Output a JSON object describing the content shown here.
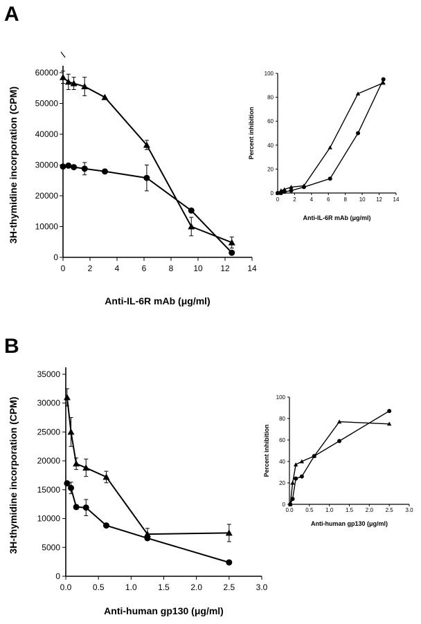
{
  "figure": {
    "panel_a": "A",
    "panel_b": "B"
  },
  "chart_data": [
    {
      "id": "A-main",
      "type": "line",
      "xlabel": "Anti-IL-6R mAb (μg/ml)",
      "ylabel": "3H-thymidine incorporation (CPM)",
      "xlim": [
        0,
        14
      ],
      "ylim": [
        0,
        60000
      ],
      "xticks": [
        0,
        2,
        4,
        6,
        8,
        10,
        12,
        14
      ],
      "yticks": [
        0,
        10000,
        20000,
        30000,
        40000,
        50000,
        60000
      ],
      "xtick_labels": [
        "0",
        "2",
        "4",
        "6",
        "8",
        "10",
        "12",
        "14"
      ],
      "ytick_labels": [
        "0",
        "10000",
        "20000",
        "30000",
        "40000",
        "50000",
        "60000"
      ],
      "series": [
        {
          "name": "triangle",
          "marker": "triangle",
          "x": [
            0,
            0.4,
            0.8,
            1.6,
            3.1,
            6.2,
            9.5,
            12.5
          ],
          "y": [
            58500,
            57000,
            56500,
            55500,
            52000,
            36500,
            10000,
            4800
          ],
          "err": [
            2000,
            2500,
            2000,
            3000,
            0,
            1500,
            3000,
            1800
          ]
        },
        {
          "name": "circle",
          "marker": "circle",
          "x": [
            0,
            0.4,
            0.8,
            1.6,
            3.1,
            6.2,
            9.5,
            12.5
          ],
          "y": [
            29500,
            29800,
            29300,
            28800,
            27900,
            25800,
            15200,
            1500
          ],
          "err": [
            0,
            0,
            0,
            2000,
            0,
            4200,
            0,
            0
          ]
        }
      ]
    },
    {
      "id": "A-inset",
      "type": "line",
      "xlabel": "Anti-IL-6R mAb (μg/ml)",
      "ylabel": "Percent inhibition",
      "xlim": [
        0,
        14
      ],
      "ylim": [
        0,
        100
      ],
      "xticks": [
        0,
        2,
        4,
        6,
        8,
        10,
        12,
        14
      ],
      "yticks": [
        0,
        20,
        40,
        60,
        80,
        100
      ],
      "xtick_labels": [
        "0",
        "2",
        "4",
        "6",
        "8",
        "10",
        "12",
        "14"
      ],
      "ytick_labels": [
        "0",
        "20",
        "40",
        "60",
        "80",
        "100"
      ],
      "series": [
        {
          "name": "triangle",
          "marker": "triangle",
          "x": [
            0,
            0.4,
            0.8,
            1.6,
            3.1,
            6.2,
            9.5,
            12.5
          ],
          "y": [
            0,
            2,
            3,
            5,
            6,
            38,
            83,
            92
          ]
        },
        {
          "name": "circle",
          "marker": "circle",
          "x": [
            0,
            0.4,
            0.8,
            1.6,
            3.1,
            6.2,
            9.5,
            12.5
          ],
          "y": [
            0,
            0,
            1,
            2,
            5,
            12,
            50,
            95
          ]
        }
      ]
    },
    {
      "id": "B-main",
      "type": "line",
      "xlabel": "Anti-human gp130 (μg/ml)",
      "ylabel": "3H-thymidine incorporation (CPM)",
      "xlim": [
        0,
        3
      ],
      "ylim": [
        0,
        35000
      ],
      "xticks": [
        0,
        0.5,
        1,
        1.5,
        2,
        2.5,
        3
      ],
      "yticks": [
        0,
        5000,
        10000,
        15000,
        20000,
        25000,
        30000,
        35000
      ],
      "xtick_labels": [
        "0.0",
        "0.5",
        "1.0",
        "1.5",
        "2.0",
        "2.5",
        "3.0"
      ],
      "ytick_labels": [
        "0",
        "5000",
        "10000",
        "15000",
        "20000",
        "25000",
        "30000",
        "35000"
      ],
      "series": [
        {
          "name": "triangle",
          "marker": "triangle",
          "x": [
            0.02,
            0.08,
            0.16,
            0.31,
            0.62,
            1.25,
            2.5
          ],
          "y": [
            31000,
            25000,
            19500,
            18800,
            17200,
            7300,
            7500
          ],
          "err": [
            1500,
            2500,
            1000,
            1500,
            1000,
            1000,
            1500
          ]
        },
        {
          "name": "circle",
          "marker": "circle",
          "x": [
            0.02,
            0.08,
            0.16,
            0.31,
            0.62,
            1.25,
            2.5
          ],
          "y": [
            16100,
            15300,
            12000,
            11900,
            8800,
            6600,
            2400
          ],
          "err": [
            0,
            1000,
            0,
            1400,
            0,
            0,
            0
          ]
        }
      ]
    },
    {
      "id": "B-inset",
      "type": "line",
      "xlabel": "Anti-human gp130 (μg/ml)",
      "ylabel": "Percent inhibition",
      "xlim": [
        0,
        3
      ],
      "ylim": [
        0,
        100
      ],
      "xticks": [
        0,
        0.5,
        1,
        1.5,
        2,
        2.5,
        3
      ],
      "yticks": [
        0,
        20,
        40,
        60,
        80,
        100
      ],
      "xtick_labels": [
        "0.0",
        "0.5",
        "1.0",
        "1.5",
        "2.0",
        "2.5",
        "3.0"
      ],
      "ytick_labels": [
        "0",
        "20",
        "40",
        "60",
        "80",
        "100"
      ],
      "series": [
        {
          "name": "triangle",
          "marker": "triangle",
          "x": [
            0.02,
            0.08,
            0.16,
            0.31,
            0.62,
            1.25,
            2.5
          ],
          "y": [
            0,
            20,
            37,
            40,
            45,
            77,
            75
          ]
        },
        {
          "name": "circle",
          "marker": "circle",
          "x": [
            0.02,
            0.08,
            0.16,
            0.31,
            0.62,
            1.25,
            2.5
          ],
          "y": [
            0,
            5,
            24,
            26,
            45,
            59,
            87
          ]
        }
      ]
    }
  ]
}
